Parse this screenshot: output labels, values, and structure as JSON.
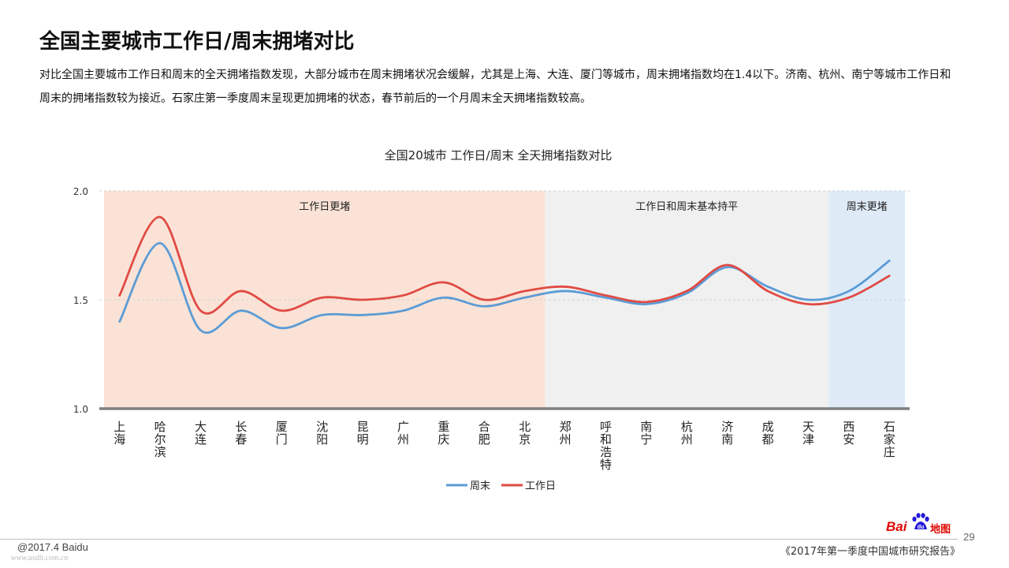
{
  "page": {
    "title": "全国主要城市工作日/周末拥堵对比",
    "description": "对比全国主要城市工作日和周末的全天拥堵指数发现，大部分城市在周末拥堵状况会缓解，尤其是上海、大连、厦门等城市，周末拥堵指数均在1.4以下。济南、杭州、南宁等城市工作日和周末的拥堵指数较为接近。石家庄第一季度周末呈现更加拥堵的状态，春节前后的一个月周末全天拥堵指数较高。"
  },
  "chart_data": {
    "type": "line",
    "title": "全国20城市 工作日/周末 全天拥堵指数对比",
    "categories": [
      "上海",
      "哈尔滨",
      "大连",
      "长春",
      "厦门",
      "沈阳",
      "昆明",
      "广州",
      "重庆",
      "合肥",
      "北京",
      "郑州",
      "呼和浩特",
      "南宁",
      "杭州",
      "济南",
      "成都",
      "天津",
      "西安",
      "石家庄"
    ],
    "series": [
      {
        "name": "周末",
        "color": "#5b9bd5",
        "values": [
          1.4,
          1.76,
          1.36,
          1.45,
          1.37,
          1.43,
          1.43,
          1.45,
          1.51,
          1.47,
          1.51,
          1.54,
          1.51,
          1.48,
          1.53,
          1.65,
          1.56,
          1.5,
          1.54,
          1.68
        ]
      },
      {
        "name": "工作日",
        "color": "#e04b44",
        "values": [
          1.52,
          1.88,
          1.45,
          1.54,
          1.45,
          1.51,
          1.5,
          1.52,
          1.58,
          1.5,
          1.54,
          1.56,
          1.52,
          1.49,
          1.54,
          1.66,
          1.54,
          1.48,
          1.51,
          1.61
        ]
      }
    ],
    "ylim": [
      1.0,
      2.0
    ],
    "yticks": [
      "1.0",
      "1.5",
      "2.0"
    ],
    "regions": [
      {
        "label": "工作日更堵",
        "from": "上海",
        "to": "北京",
        "color": "#fae3d6"
      },
      {
        "label": "工作日和周末基本持平",
        "from": "郑州",
        "to": "天津",
        "color": "#f0f0f0"
      },
      {
        "label": "周末更堵",
        "from": "西安",
        "to": "石家庄",
        "color": "#deebf7"
      }
    ],
    "grid": "dashed horizontal",
    "legend": "bottom"
  },
  "footer": {
    "copyright": "@2017.4 Baidu",
    "watermark": "www.usdit.com.cn",
    "report": "《2017年第一季度中国城市研究报告》",
    "page_number": "29",
    "logo_bai": "Bai",
    "logo_map": "地图"
  }
}
